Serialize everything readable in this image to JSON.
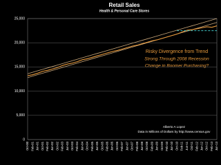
{
  "chart_data": {
    "type": "line",
    "title": "Retail Sales",
    "subtitle": "Health & Personal Care Stores",
    "categories": [
      "Oct-00",
      "Feb-01",
      "Jun-01",
      "Oct-01",
      "Feb-02",
      "Jun-02",
      "Oct-02",
      "Feb-03",
      "Jun-03",
      "Oct-03",
      "Feb-04",
      "Jun-04",
      "Oct-04",
      "Feb-05",
      "Jun-05",
      "Oct-05",
      "Feb-06",
      "Jun-06",
      "Oct-06",
      "Feb-07",
      "Jun-07",
      "Oct-07",
      "Feb-08",
      "Jun-08",
      "Oct-08",
      "Feb-09",
      "Jun-09",
      "Oct-09",
      "Feb-10",
      "Jun-10",
      "Oct-10",
      "Feb-11",
      "Jun-11",
      "Oct-11",
      "Feb-12",
      "Jun-12",
      "Oct-12",
      "Feb-13",
      "Jun-13"
    ],
    "series": [
      {
        "color": "#c9a77a",
        "dash": false,
        "width": 0.8,
        "values": [
          13600,
          13900,
          14200,
          14500,
          14800,
          15100,
          15400,
          15700,
          16000,
          16300,
          16600,
          16900,
          17200,
          17500,
          17800,
          18100,
          18400,
          18700,
          19000,
          19300,
          19600,
          19900,
          20200,
          20500,
          20800,
          21100,
          21400,
          21700,
          22000,
          22300,
          22600,
          22900,
          23200,
          23500,
          23800,
          24100,
          24400,
          24700,
          25000
        ]
      },
      {
        "color": "#c9a77a",
        "dash": false,
        "width": 0.8,
        "values": [
          12800,
          13100,
          13400,
          13700,
          14000,
          14300,
          14600,
          14900,
          15200,
          15500,
          15800,
          16100,
          16400,
          16700,
          17000,
          17300,
          17600,
          17900,
          18200,
          18500,
          18800,
          19100,
          19400,
          19700,
          20000,
          20300,
          20600,
          20900,
          21200,
          21500,
          21800,
          22100,
          22400,
          22700,
          23000,
          23300,
          23600,
          23900,
          24200
        ]
      },
      {
        "color": "#e89a3c",
        "dash": false,
        "width": 1.1,
        "values": [
          13200,
          13400,
          13700,
          14100,
          14300,
          14600,
          14900,
          15300,
          15600,
          15800,
          16100,
          16500,
          16700,
          17000,
          17300,
          17600,
          17900,
          18200,
          18400,
          18700,
          19000,
          19300,
          19500,
          19800,
          20100,
          20400,
          20600,
          20900,
          21200,
          21500,
          21800,
          22200,
          22600,
          22700,
          22900,
          23100,
          23300,
          23200,
          23500
        ]
      },
      {
        "color": "#3fc4c4",
        "dash": true,
        "width": 1,
        "values": [
          null,
          null,
          null,
          null,
          null,
          null,
          null,
          null,
          null,
          null,
          null,
          null,
          null,
          null,
          null,
          null,
          null,
          null,
          null,
          null,
          null,
          null,
          null,
          null,
          null,
          null,
          null,
          null,
          null,
          null,
          22500,
          22500,
          22500,
          22500,
          22500,
          22500,
          22500,
          22500,
          22500
        ]
      }
    ],
    "ylim": [
      0,
      25000
    ],
    "yticks": [
      0,
      {
        "value": 5000,
        "label": "5,000"
      },
      {
        "value": 10000,
        "label": "10,000"
      },
      {
        "value": 15000,
        "label": "15,000"
      },
      {
        "value": 20000,
        "label": "20,000"
      },
      {
        "value": 25000,
        "label": "25,000"
      }
    ],
    "grid": true,
    "annotations": [
      "Risky Divergence from Trend",
      "Strong Through 2008 Recession",
      "Change in Boomer Purchasing?"
    ],
    "author": "Alberto A Lopez",
    "source": "Data in Millions of Dollars by http://www.census.gov"
  }
}
